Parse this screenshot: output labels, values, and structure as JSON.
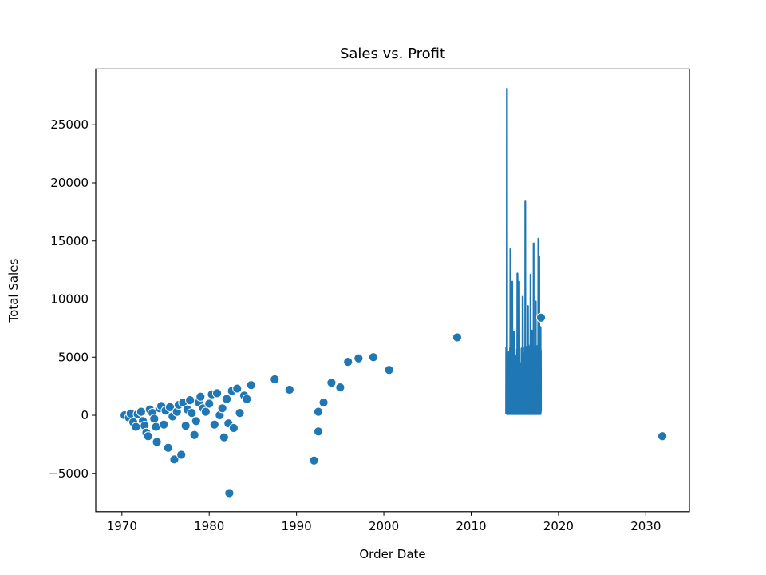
{
  "chart_data": {
    "type": "scatter",
    "title": "Sales vs. Profit",
    "xlabel": "Order Date",
    "ylabel": "Total Sales",
    "xlim": [
      1967,
      2035
    ],
    "ylim": [
      -8300,
      29800
    ],
    "x_ticks": [
      1970,
      1980,
      1990,
      2000,
      2010,
      2020,
      2030
    ],
    "y_ticks": [
      -5000,
      0,
      5000,
      10000,
      15000,
      20000,
      25000
    ],
    "y_tick_labels": [
      "−5000",
      "0",
      "5000",
      "10000",
      "15000",
      "20000",
      "25000"
    ],
    "grid": false,
    "legend": "none",
    "color": "#1f77b4",
    "series": [
      {
        "kind": "line",
        "x_range": [
          2014.0,
          2018.0
        ],
        "baseline": 100,
        "dense_level": 5500,
        "peaks": [
          [
            2014.1,
            28100
          ],
          [
            2014.5,
            14300
          ],
          [
            2014.7,
            11500
          ],
          [
            2014.9,
            7200
          ],
          [
            2015.3,
            12200
          ],
          [
            2015.5,
            11500
          ],
          [
            2015.9,
            10200
          ],
          [
            2016.2,
            18400
          ],
          [
            2016.5,
            9400
          ],
          [
            2016.8,
            12100
          ],
          [
            2016.95,
            7300
          ],
          [
            2017.15,
            14800
          ],
          [
            2017.4,
            9800
          ],
          [
            2017.7,
            15200
          ],
          [
            2017.8,
            13700
          ],
          [
            2017.95,
            7600
          ]
        ]
      },
      {
        "kind": "scatter",
        "points": [
          [
            1970.3,
            0
          ],
          [
            1970.8,
            -200
          ],
          [
            1971.0,
            150
          ],
          [
            1971.3,
            -600
          ],
          [
            1971.6,
            -1000
          ],
          [
            1971.8,
            100
          ],
          [
            1972.2,
            300
          ],
          [
            1972.4,
            -500
          ],
          [
            1972.6,
            -900
          ],
          [
            1972.8,
            -1500
          ],
          [
            1973.0,
            -1800
          ],
          [
            1973.2,
            500
          ],
          [
            1973.5,
            200
          ],
          [
            1973.7,
            -300
          ],
          [
            1973.9,
            -1000
          ],
          [
            1974.0,
            -2300
          ],
          [
            1974.3,
            600
          ],
          [
            1974.5,
            800
          ],
          [
            1974.8,
            -800
          ],
          [
            1975.0,
            400
          ],
          [
            1975.3,
            -2800
          ],
          [
            1975.5,
            700
          ],
          [
            1975.8,
            -100
          ],
          [
            1976.0,
            -3800
          ],
          [
            1976.3,
            300
          ],
          [
            1976.5,
            900
          ],
          [
            1976.8,
            -3400
          ],
          [
            1977.0,
            1100
          ],
          [
            1977.3,
            -900
          ],
          [
            1977.5,
            500
          ],
          [
            1977.8,
            1300
          ],
          [
            1978.0,
            200
          ],
          [
            1978.3,
            -1700
          ],
          [
            1978.5,
            -500
          ],
          [
            1978.8,
            1100
          ],
          [
            1979.0,
            1600
          ],
          [
            1979.3,
            600
          ],
          [
            1979.6,
            300
          ],
          [
            1980.0,
            1000
          ],
          [
            1980.3,
            1800
          ],
          [
            1980.6,
            -800
          ],
          [
            1980.9,
            1900
          ],
          [
            1981.2,
            0
          ],
          [
            1981.5,
            600
          ],
          [
            1981.7,
            -1900
          ],
          [
            1982.0,
            1400
          ],
          [
            1982.2,
            -700
          ],
          [
            1982.3,
            -6700
          ],
          [
            1982.6,
            2100
          ],
          [
            1982.8,
            -1100
          ],
          [
            1983.2,
            2300
          ],
          [
            1983.5,
            200
          ],
          [
            1984.0,
            1700
          ],
          [
            1984.3,
            1400
          ],
          [
            1984.8,
            2600
          ],
          [
            1987.5,
            3100
          ],
          [
            1989.2,
            2200
          ],
          [
            1992.0,
            -3900
          ],
          [
            1992.5,
            300
          ],
          [
            1992.5,
            -1400
          ],
          [
            1993.1,
            1100
          ],
          [
            1994.0,
            2800
          ],
          [
            1995.0,
            2400
          ],
          [
            1995.9,
            4600
          ],
          [
            1997.1,
            4900
          ],
          [
            1998.8,
            5000
          ],
          [
            2000.6,
            3900
          ],
          [
            2008.4,
            6700
          ],
          [
            2018.0,
            8400
          ],
          [
            2031.9,
            -1800
          ]
        ]
      }
    ]
  }
}
